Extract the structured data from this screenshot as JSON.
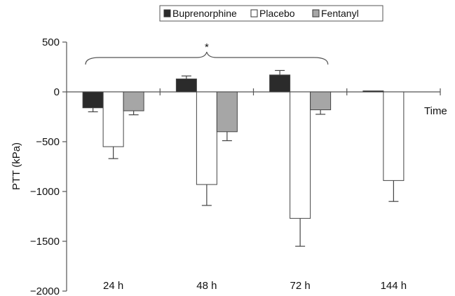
{
  "chart_data": {
    "type": "bar",
    "categories": [
      "24 h",
      "48 h",
      "72 h",
      "144 h"
    ],
    "series": [
      {
        "name": "Buprenorphine",
        "values": [
          -160,
          130,
          170,
          10
        ],
        "errors": [
          40,
          30,
          45,
          0
        ],
        "color": "#2b2b2b"
      },
      {
        "name": "Placebo",
        "values": [
          -550,
          -930,
          -1270,
          -890
        ],
        "errors": [
          120,
          210,
          280,
          210
        ],
        "color": "#ffffff"
      },
      {
        "name": "Fentanyl",
        "values": [
          -190,
          -400,
          -180,
          null
        ],
        "errors": [
          40,
          90,
          45,
          null
        ],
        "color": "#a6a6a6"
      }
    ],
    "xlabel": "Time",
    "ylabel": "PTT (kPa)",
    "ylim": [
      -2000,
      500
    ],
    "yticks": [
      500,
      0,
      -500,
      -1000,
      -1500,
      -2000
    ],
    "ytick_labels": [
      "500",
      "0",
      "−500",
      "−1000",
      "−1500",
      "−2000"
    ],
    "legend_position": "top",
    "annotation": "*",
    "grid": false
  }
}
